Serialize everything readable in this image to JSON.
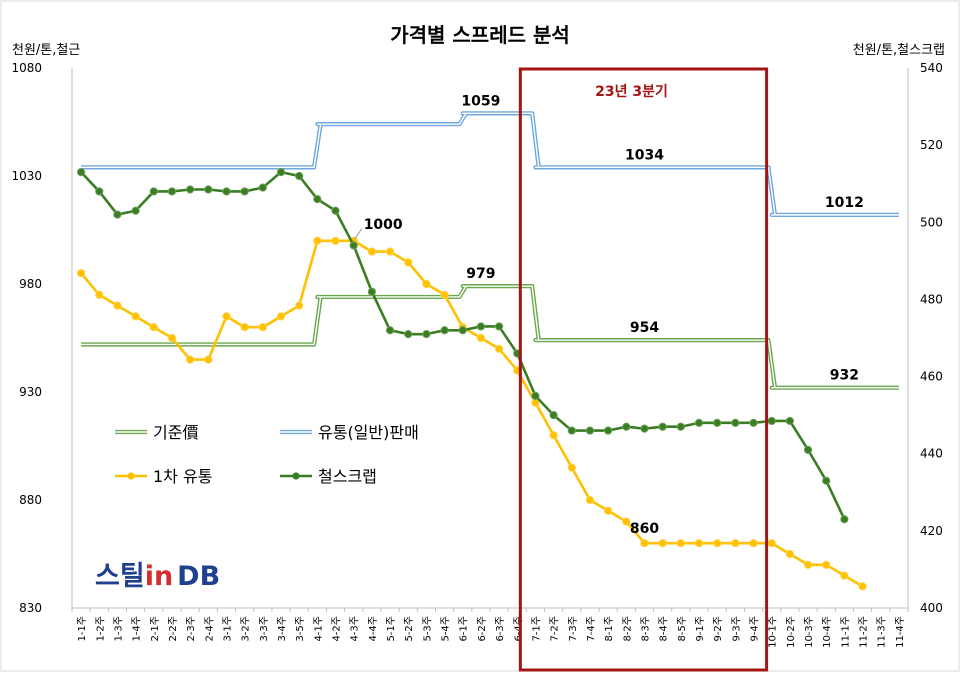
{
  "chart_data": {
    "type": "line",
    "title": "가격별 스프레드 분석",
    "ylabel": "천원/톤,철근",
    "ylabel_right": "천원/톤,철스크랩",
    "ylim": [
      830,
      1080
    ],
    "yticks": [
      830,
      880,
      930,
      980,
      1030,
      1080
    ],
    "ylim_right": [
      400,
      540
    ],
    "yticks_right": [
      400,
      420,
      440,
      460,
      480,
      500,
      520,
      540
    ],
    "grid": false,
    "legend_position": "lower-left (inside plot)",
    "categories": [
      "1-1주",
      "1-2주",
      "1-3주",
      "1-4주",
      "2-1주",
      "2-2주",
      "2-3주",
      "2-4주",
      "3-1주",
      "3-2주",
      "3-3주",
      "3-4주",
      "3-5주",
      "4-1주",
      "4-2주",
      "4-3주",
      "4-4주",
      "5-1주",
      "5-2주",
      "5-3주",
      "5-4주",
      "6-1주",
      "6-2주",
      "6-3주",
      "6-4주",
      "7-1주",
      "7-2주",
      "7-3주",
      "7-4주",
      "8-1주",
      "8-2주",
      "8-3주",
      "8-4주",
      "8-5주",
      "9-1주",
      "9-2주",
      "9-3주",
      "9-4주",
      "10-1주",
      "10-2주",
      "10-3주",
      "10-4주",
      "11-1주",
      "11-2주",
      "11-3주",
      "11-4주"
    ],
    "series": [
      {
        "name": "기준價",
        "axis": "left",
        "style": "double-line",
        "color": "#6aa84f",
        "values": [
          952,
          952,
          952,
          952,
          952,
          952,
          952,
          952,
          952,
          952,
          952,
          952,
          952,
          974,
          974,
          974,
          974,
          974,
          974,
          974,
          974,
          979,
          979,
          979,
          979,
          954,
          954,
          954,
          954,
          954,
          954,
          954,
          954,
          954,
          954,
          954,
          954,
          954,
          932,
          932,
          932,
          932,
          932,
          932,
          932,
          932
        ]
      },
      {
        "name": "유통(일반)판매",
        "axis": "left",
        "style": "double-line",
        "color": "#6fa8dc",
        "values": [
          1034,
          1034,
          1034,
          1034,
          1034,
          1034,
          1034,
          1034,
          1034,
          1034,
          1034,
          1034,
          1034,
          1054,
          1054,
          1054,
          1054,
          1054,
          1054,
          1054,
          1054,
          1059,
          1059,
          1059,
          1059,
          1034,
          1034,
          1034,
          1034,
          1034,
          1034,
          1034,
          1034,
          1034,
          1034,
          1034,
          1034,
          1034,
          1012,
          1012,
          1012,
          1012,
          1012,
          1012,
          1012,
          1012
        ]
      },
      {
        "name": "1차 유통",
        "axis": "left",
        "style": "marker-line",
        "color": "#ffc000",
        "values": [
          985,
          975,
          970,
          965,
          960,
          955,
          945,
          945,
          965,
          960,
          960,
          965,
          970,
          1000,
          1000,
          1000,
          995,
          995,
          990,
          980,
          975,
          960,
          955,
          950,
          940,
          925,
          910,
          895,
          880,
          875,
          870,
          860,
          860,
          860,
          860,
          860,
          860,
          860,
          860,
          855,
          850,
          850,
          845,
          840,
          null,
          null
        ]
      },
      {
        "name": "철스크랩",
        "axis": "right",
        "style": "marker-line",
        "color": "#3a7d22",
        "values": [
          513,
          508,
          502,
          503,
          508,
          508,
          508.5,
          508.5,
          508,
          508,
          509,
          513,
          512,
          506,
          503,
          494,
          482,
          472,
          471,
          471,
          472,
          472,
          473,
          473,
          466,
          455,
          450,
          446,
          446,
          446,
          447,
          446.5,
          447,
          447,
          448,
          448,
          448,
          448,
          448.5,
          448.5,
          441,
          433,
          423,
          null,
          null,
          null
        ]
      }
    ],
    "data_labels": [
      {
        "text": "1059",
        "series": "유통(일반)판매"
      },
      {
        "text": "1034",
        "series": "유통(일반)판매"
      },
      {
        "text": "1012",
        "series": "유통(일반)판매"
      },
      {
        "text": "979",
        "series": "기준價"
      },
      {
        "text": "954",
        "series": "기준價"
      },
      {
        "text": "932",
        "series": "기준價"
      },
      {
        "text": "1000",
        "series": "1차 유통"
      },
      {
        "text": "860",
        "series": "1차 유통"
      }
    ],
    "highlight": {
      "label": "23년 3분기",
      "color": "#a31515",
      "from": "7-1주",
      "to": "9-4주"
    }
  },
  "logo": {
    "text": "스틸in DB",
    "part1": "스틸",
    "part2": "in",
    "part3": "DB"
  }
}
